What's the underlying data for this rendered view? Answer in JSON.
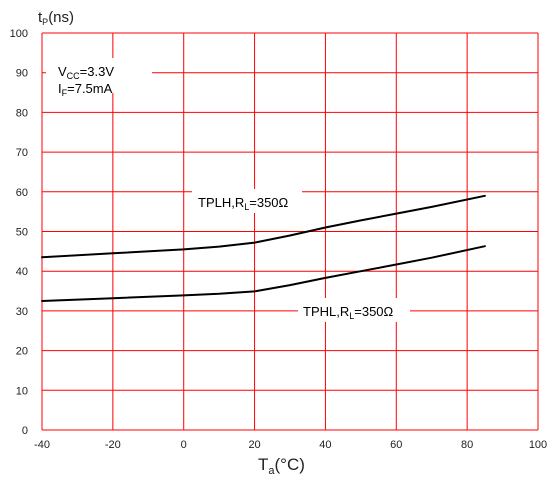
{
  "chart_data": {
    "type": "line",
    "ylabel": {
      "main": "t",
      "sub": "P",
      "unit": "(ns)"
    },
    "xlabel": {
      "main": "T",
      "sub": "a",
      "unit": "(°C)"
    },
    "xlim": [
      -40,
      100
    ],
    "ylim": [
      0,
      100
    ],
    "x_ticks": [
      -40,
      -20,
      0,
      20,
      40,
      60,
      80,
      100
    ],
    "y_ticks": [
      0,
      10,
      20,
      30,
      40,
      50,
      60,
      70,
      80,
      90,
      100
    ],
    "grid": true,
    "grid_color": "#ff0000",
    "line_color": "#000000",
    "conditions": [
      {
        "main": "V",
        "sub": "CC",
        "rest": "=3.3V"
      },
      {
        "main": "I",
        "sub": "F",
        "rest": "=7.5mA"
      }
    ],
    "series": [
      {
        "name": "TPLH,RL=350Ω",
        "label": {
          "pre": "TPLH,R",
          "sub": "L",
          "post": "=350Ω"
        },
        "x": [
          -40,
          -20,
          0,
          10,
          20,
          30,
          40,
          50,
          60,
          70,
          85
        ],
        "y": [
          43.5,
          44.5,
          45.5,
          46.2,
          47.2,
          49.0,
          51.0,
          52.8,
          54.5,
          56.2,
          59.0
        ]
      },
      {
        "name": "TPHL,RL=350Ω",
        "label": {
          "pre": "TPHL,R",
          "sub": "L",
          "post": "=350Ω"
        },
        "x": [
          -40,
          -20,
          0,
          10,
          20,
          30,
          40,
          50,
          60,
          70,
          85
        ],
        "y": [
          32.5,
          33.2,
          33.9,
          34.3,
          34.9,
          36.5,
          38.3,
          40.0,
          41.7,
          43.4,
          46.3
        ]
      }
    ]
  }
}
